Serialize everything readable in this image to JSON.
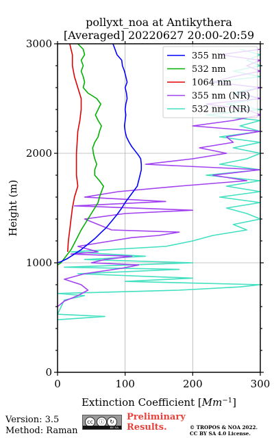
{
  "chart_data": {
    "type": "line",
    "title": "pollyxt_noa at Antikythera",
    "subtitle": "[Averaged] 20220627 20:00-20:59",
    "xlabel_main": "Extinction Coefficient [",
    "xlabel_unit": "Mm",
    "xlabel_exp": "−1",
    "xlabel_end": "]",
    "ylabel": "Height (m)",
    "xlim": [
      0,
      300
    ],
    "ylim": [
      0,
      3000
    ],
    "xticks": [
      0,
      100,
      200,
      300
    ],
    "yticks": [
      0,
      1000,
      2000,
      3000
    ],
    "grid": true,
    "legend_position": "top-right",
    "series": [
      {
        "name": "355 nm",
        "color": "#0000ff",
        "points": [
          [
            0,
            1000
          ],
          [
            5,
            1010
          ],
          [
            15,
            1040
          ],
          [
            25,
            1080
          ],
          [
            35,
            1120
          ],
          [
            45,
            1170
          ],
          [
            55,
            1220
          ],
          [
            65,
            1280
          ],
          [
            72,
            1320
          ],
          [
            80,
            1380
          ],
          [
            88,
            1440
          ],
          [
            95,
            1500
          ],
          [
            100,
            1550
          ],
          [
            106,
            1600
          ],
          [
            112,
            1650
          ],
          [
            118,
            1700
          ],
          [
            120,
            1750
          ],
          [
            122,
            1800
          ],
          [
            124,
            1850
          ],
          [
            124,
            1900
          ],
          [
            123,
            1950
          ],
          [
            120,
            1980
          ],
          [
            115,
            2020
          ],
          [
            110,
            2060
          ],
          [
            106,
            2100
          ],
          [
            102,
            2150
          ],
          [
            100,
            2200
          ],
          [
            99,
            2250
          ],
          [
            100,
            2300
          ],
          [
            101,
            2350
          ],
          [
            100,
            2400
          ],
          [
            101,
            2450
          ],
          [
            103,
            2500
          ],
          [
            102,
            2550
          ],
          [
            100,
            2600
          ],
          [
            103,
            2650
          ],
          [
            101,
            2700
          ],
          [
            99,
            2750
          ],
          [
            96,
            2800
          ],
          [
            95,
            2850
          ],
          [
            88,
            2900
          ],
          [
            85,
            2950
          ],
          [
            82,
            3000
          ]
        ]
      },
      {
        "name": "532 nm",
        "color": "#00b000",
        "points": [
          [
            0,
            980
          ],
          [
            5,
            1000
          ],
          [
            10,
            1040
          ],
          [
            15,
            1080
          ],
          [
            20,
            1120
          ],
          [
            25,
            1180
          ],
          [
            30,
            1240
          ],
          [
            35,
            1300
          ],
          [
            40,
            1350
          ],
          [
            45,
            1400
          ],
          [
            50,
            1450
          ],
          [
            55,
            1500
          ],
          [
            60,
            1550
          ],
          [
            62,
            1600
          ],
          [
            65,
            1650
          ],
          [
            68,
            1700
          ],
          [
            62,
            1750
          ],
          [
            55,
            1800
          ],
          [
            55,
            1850
          ],
          [
            58,
            1900
          ],
          [
            55,
            1950
          ],
          [
            53,
            2000
          ],
          [
            52,
            2050
          ],
          [
            55,
            2100
          ],
          [
            60,
            2150
          ],
          [
            62,
            2200
          ],
          [
            65,
            2250
          ],
          [
            60,
            2300
          ],
          [
            56,
            2350
          ],
          [
            60,
            2400
          ],
          [
            64,
            2450
          ],
          [
            58,
            2500
          ],
          [
            45,
            2550
          ],
          [
            38,
            2600
          ],
          [
            40,
            2650
          ],
          [
            38,
            2700
          ],
          [
            35,
            2750
          ],
          [
            38,
            2800
          ],
          [
            35,
            2850
          ],
          [
            40,
            2900
          ],
          [
            38,
            2950
          ],
          [
            30,
            3000
          ]
        ]
      },
      {
        "name": "1064 nm",
        "color": "#e00000",
        "points": [
          [
            15,
            1100
          ],
          [
            16,
            1200
          ],
          [
            18,
            1300
          ],
          [
            20,
            1400
          ],
          [
            22,
            1500
          ],
          [
            25,
            1600
          ],
          [
            30,
            1700
          ],
          [
            28,
            1800
          ],
          [
            28,
            1900
          ],
          [
            28,
            2000
          ],
          [
            29,
            2100
          ],
          [
            30,
            2200
          ],
          [
            33,
            2300
          ],
          [
            35,
            2400
          ],
          [
            35,
            2500
          ],
          [
            30,
            2600
          ],
          [
            25,
            2700
          ],
          [
            22,
            2800
          ],
          [
            22,
            2900
          ],
          [
            20,
            2950
          ],
          [
            18,
            3000
          ]
        ]
      },
      {
        "name": "355 nm (NR)",
        "color": "#a040f0",
        "points": [
          [
            0,
            600
          ],
          [
            10,
            650
          ],
          [
            30,
            700
          ],
          [
            45,
            750
          ],
          [
            35,
            800
          ],
          [
            10,
            850
          ],
          [
            40,
            900
          ],
          [
            95,
            950
          ],
          [
            120,
            980
          ],
          [
            50,
            1000
          ],
          [
            70,
            1030
          ],
          [
            110,
            1060
          ],
          [
            20,
            1080
          ],
          [
            60,
            1100
          ],
          [
            30,
            1150
          ],
          [
            80,
            1200
          ],
          [
            110,
            1230
          ],
          [
            150,
            1250
          ],
          [
            180,
            1280
          ],
          [
            80,
            1300
          ],
          [
            60,
            1350
          ],
          [
            40,
            1400
          ],
          [
            100,
            1450
          ],
          [
            200,
            1480
          ],
          [
            25,
            1520
          ],
          [
            160,
            1560
          ],
          [
            40,
            1600
          ],
          [
            90,
            1650
          ],
          [
            180,
            1700
          ],
          [
            280,
            1750
          ],
          [
            230,
            1800
          ],
          [
            300,
            1850
          ],
          [
            130,
            1900
          ],
          [
            200,
            1950
          ],
          [
            250,
            2000
          ],
          [
            210,
            2050
          ],
          [
            260,
            2100
          ],
          [
            250,
            2150
          ],
          [
            300,
            2200
          ],
          [
            200,
            2250
          ],
          [
            260,
            2300
          ],
          [
            300,
            2350
          ],
          [
            280,
            2400
          ],
          [
            220,
            2450
          ],
          [
            300,
            2500
          ],
          [
            270,
            2550
          ],
          [
            300,
            2600
          ],
          [
            230,
            2650
          ],
          [
            260,
            2700
          ],
          [
            300,
            2750
          ],
          [
            280,
            2800
          ],
          [
            300,
            2850
          ],
          [
            240,
            2900
          ],
          [
            300,
            2950
          ]
        ]
      },
      {
        "name": "532 nm (NR)",
        "color": "#40e0c0",
        "points": [
          [
            0,
            480
          ],
          [
            70,
            510
          ],
          [
            0,
            530
          ],
          [
            10,
            660
          ],
          [
            40,
            700
          ],
          [
            0,
            720
          ],
          [
            180,
            750
          ],
          [
            270,
            780
          ],
          [
            300,
            800
          ],
          [
            100,
            830
          ],
          [
            200,
            860
          ],
          [
            30,
            900
          ],
          [
            180,
            940
          ],
          [
            10,
            960
          ],
          [
            200,
            1000
          ],
          [
            40,
            1030
          ],
          [
            130,
            1060
          ],
          [
            20,
            1100
          ],
          [
            160,
            1150
          ],
          [
            200,
            1200
          ],
          [
            230,
            1250
          ],
          [
            280,
            1300
          ],
          [
            260,
            1350
          ],
          [
            300,
            1400
          ],
          [
            280,
            1450
          ],
          [
            250,
            1500
          ],
          [
            300,
            1550
          ],
          [
            240,
            1600
          ],
          [
            300,
            1650
          ],
          [
            250,
            1700
          ],
          [
            300,
            1750
          ],
          [
            220,
            1800
          ],
          [
            300,
            1850
          ],
          [
            240,
            1900
          ],
          [
            280,
            1950
          ],
          [
            300,
            2000
          ],
          [
            260,
            2050
          ],
          [
            300,
            2100
          ],
          [
            240,
            2150
          ],
          [
            300,
            2200
          ],
          [
            270,
            2250
          ],
          [
            300,
            2300
          ],
          [
            220,
            2350
          ],
          [
            300,
            2400
          ],
          [
            250,
            2450
          ],
          [
            300,
            2500
          ],
          [
            260,
            2550
          ],
          [
            300,
            2600
          ],
          [
            230,
            2650
          ],
          [
            300,
            2700
          ],
          [
            260,
            2750
          ],
          [
            300,
            2800
          ],
          [
            280,
            2850
          ],
          [
            300,
            2900
          ],
          [
            270,
            2950
          ]
        ]
      }
    ]
  },
  "footer": {
    "version": "Version: 3.5",
    "method": "Method: Raman",
    "preliminary_line1": "Preliminary",
    "preliminary_line2": "Results.",
    "copyright_line1": "© TROPOS & NOA 2022.",
    "copyright_line2": "CC BY SA 4.0 License.",
    "cc_badge_text": "BY SA"
  }
}
